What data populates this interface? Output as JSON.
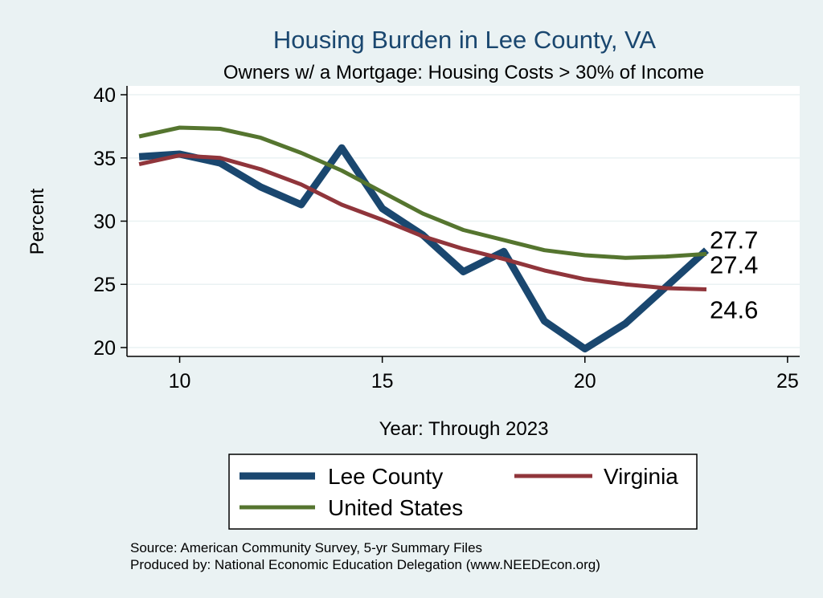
{
  "title": "Housing Burden in Lee County, VA",
  "subtitle": "Owners w/ a Mortgage: Housing Costs > 30% of Income",
  "notes": [
    "Source: American Community Survey, 5-yr Summary Files",
    "Produced by: National Economic Education Delegation (www.NEEDEcon.org)"
  ],
  "chart_data": {
    "type": "line",
    "xlabel": "Year: Through 2023",
    "ylabel": "Percent",
    "xlim": [
      8.7,
      25.3
    ],
    "ylim": [
      19.3,
      40.7
    ],
    "xticks": [
      10,
      15,
      20,
      25
    ],
    "yticks": [
      20,
      25,
      30,
      35,
      40
    ],
    "grid": true,
    "legend": "bottom",
    "series": [
      {
        "name": "Lee County",
        "color": "#1a476f",
        "width": 9,
        "x": [
          9,
          10,
          11,
          12,
          13,
          14,
          15,
          16,
          17,
          18,
          19,
          20,
          21,
          22,
          23
        ],
        "y": [
          35.1,
          35.3,
          34.6,
          32.7,
          31.3,
          35.8,
          31.0,
          28.9,
          26.0,
          27.6,
          22.1,
          19.9,
          21.9,
          24.8,
          27.7
        ],
        "end_label": "27.7"
      },
      {
        "name": "Virginia",
        "color": "#90353b",
        "width": 5,
        "x": [
          9,
          10,
          11,
          12,
          13,
          14,
          15,
          16,
          17,
          18,
          19,
          20,
          21,
          22,
          23
        ],
        "y": [
          34.5,
          35.2,
          35.0,
          34.1,
          32.9,
          31.3,
          30.1,
          28.8,
          27.8,
          27.0,
          26.1,
          25.4,
          25.0,
          24.7,
          24.6
        ],
        "end_label": "24.6"
      },
      {
        "name": "United States",
        "color": "#55752f",
        "width": 5,
        "x": [
          9,
          10,
          11,
          12,
          13,
          14,
          15,
          16,
          17,
          18,
          19,
          20,
          21,
          22,
          23
        ],
        "y": [
          36.7,
          37.4,
          37.3,
          36.6,
          35.4,
          34.0,
          32.3,
          30.6,
          29.3,
          28.5,
          27.7,
          27.3,
          27.1,
          27.2,
          27.4
        ],
        "end_label": "27.4"
      }
    ]
  }
}
